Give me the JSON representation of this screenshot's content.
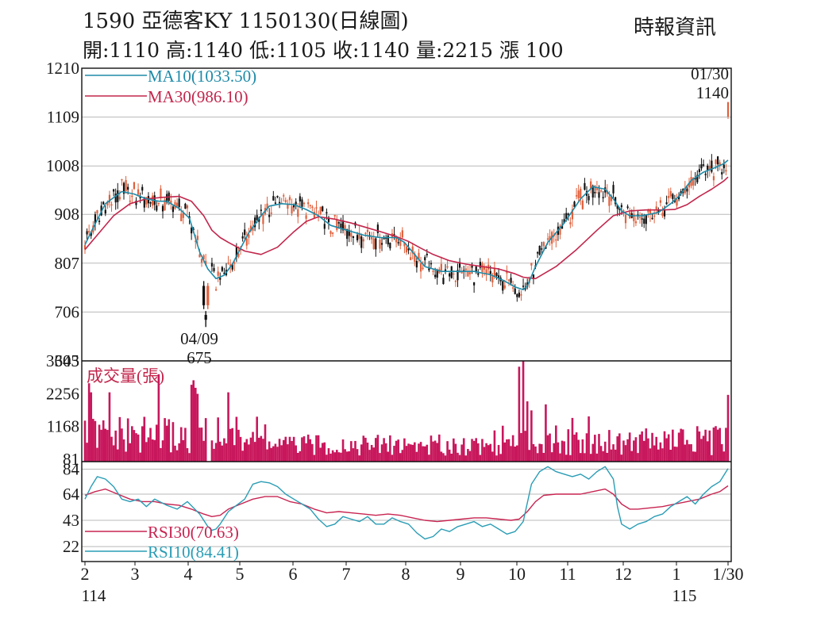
{
  "header": {
    "title": "1590  亞德客KY 1150130(日線圖)",
    "source": "時報資訊",
    "stats": "開:1110 高:1140 低:1105 收:1140 量:2215 漲 100"
  },
  "colors": {
    "up": "#e0603c",
    "down": "#111111",
    "ma10": "#1e8aa8",
    "ma30": "#c2264c",
    "volume": "#c8175c",
    "rsi10": "#2a9db5",
    "rsi30": "#c82451",
    "grid": "#b8b8b8"
  },
  "chart_data": {
    "type": "candlestick",
    "price_panel": {
      "ylim": [
        605,
        1210
      ],
      "ticks": [
        605,
        706,
        807,
        908,
        1008,
        1109,
        1210
      ],
      "legend": [
        {
          "label": "MA10(1033.50)",
          "series": "ma10"
        },
        {
          "label": "MA30(986.10)",
          "series": "ma30"
        }
      ],
      "annotations": [
        {
          "date": "01/30",
          "value": "1140",
          "label_lines": [
            "01/30",
            "1140"
          ]
        },
        {
          "date": "04/09",
          "value": "675",
          "label_lines": [
            "04/09",
            "675"
          ]
        }
      ],
      "ma10": [
        [
          0,
          845
        ],
        [
          4,
          880
        ],
        [
          10,
          930
        ],
        [
          18,
          955
        ],
        [
          24,
          950
        ],
        [
          30,
          940
        ],
        [
          36,
          935
        ],
        [
          40,
          935
        ],
        [
          46,
          920
        ],
        [
          51,
          900
        ],
        [
          56,
          830
        ],
        [
          60,
          795
        ],
        [
          64,
          775
        ],
        [
          68,
          782
        ],
        [
          72,
          805
        ],
        [
          76,
          838
        ],
        [
          80,
          870
        ],
        [
          86,
          905
        ],
        [
          90,
          925
        ],
        [
          96,
          930
        ],
        [
          102,
          928
        ],
        [
          108,
          918
        ],
        [
          114,
          905
        ],
        [
          120,
          885
        ],
        [
          128,
          875
        ],
        [
          136,
          865
        ],
        [
          144,
          860
        ],
        [
          152,
          860
        ],
        [
          156,
          850
        ],
        [
          160,
          830
        ],
        [
          166,
          800
        ],
        [
          174,
          790
        ],
        [
          182,
          790
        ],
        [
          190,
          790
        ],
        [
          198,
          783
        ],
        [
          204,
          772
        ],
        [
          210,
          758
        ],
        [
          214,
          752
        ],
        [
          216,
          760
        ],
        [
          220,
          800
        ],
        [
          226,
          850
        ],
        [
          234,
          890
        ],
        [
          242,
          940
        ],
        [
          248,
          965
        ],
        [
          254,
          960
        ],
        [
          258,
          940
        ],
        [
          262,
          915
        ],
        [
          266,
          905
        ],
        [
          272,
          905
        ],
        [
          280,
          912
        ],
        [
          286,
          930
        ],
        [
          290,
          945
        ],
        [
          296,
          978
        ],
        [
          302,
          995
        ],
        [
          308,
          1005
        ],
        [
          312,
          1013
        ],
        [
          314,
          1020
        ]
      ],
      "ma30": [
        [
          0,
          835
        ],
        [
          6,
          865
        ],
        [
          14,
          905
        ],
        [
          22,
          930
        ],
        [
          30,
          940
        ],
        [
          38,
          943
        ],
        [
          46,
          945
        ],
        [
          52,
          935
        ],
        [
          58,
          905
        ],
        [
          62,
          875
        ],
        [
          66,
          860
        ],
        [
          70,
          850
        ],
        [
          78,
          832
        ],
        [
          86,
          825
        ],
        [
          94,
          840
        ],
        [
          102,
          872
        ],
        [
          108,
          893
        ],
        [
          114,
          903
        ],
        [
          122,
          898
        ],
        [
          130,
          890
        ],
        [
          138,
          880
        ],
        [
          146,
          870
        ],
        [
          152,
          862
        ],
        [
          158,
          852
        ],
        [
          164,
          838
        ],
        [
          170,
          825
        ],
        [
          178,
          812
        ],
        [
          186,
          805
        ],
        [
          194,
          800
        ],
        [
          202,
          795
        ],
        [
          210,
          785
        ],
        [
          214,
          778
        ],
        [
          220,
          775
        ],
        [
          230,
          800
        ],
        [
          240,
          835
        ],
        [
          250,
          875
        ],
        [
          258,
          905
        ],
        [
          266,
          915
        ],
        [
          274,
          917
        ],
        [
          282,
          917
        ],
        [
          288,
          918
        ],
        [
          294,
          928
        ],
        [
          300,
          945
        ],
        [
          306,
          960
        ],
        [
          312,
          977
        ],
        [
          314,
          985
        ]
      ]
    },
    "volume_panel": {
      "title": "成交量(張)",
      "ylim": [
        0,
        3343
      ],
      "ticks": [
        81,
        1168,
        2256,
        3343
      ]
    },
    "rsi_panel": {
      "ylim": [
        10,
        90
      ],
      "ticks": [
        22,
        43,
        64,
        84
      ],
      "legend": [
        {
          "label": "RSI30(70.63)",
          "series": "rsi30"
        },
        {
          "label": "RSI10(84.41)",
          "series": "rsi10"
        }
      ],
      "rsi10": [
        [
          0,
          60
        ],
        [
          3,
          70
        ],
        [
          6,
          78
        ],
        [
          10,
          76
        ],
        [
          14,
          70
        ],
        [
          18,
          60
        ],
        [
          22,
          58
        ],
        [
          26,
          60
        ],
        [
          30,
          54
        ],
        [
          34,
          60
        ],
        [
          40,
          55
        ],
        [
          45,
          52
        ],
        [
          50,
          58
        ],
        [
          56,
          48
        ],
        [
          60,
          38
        ],
        [
          62,
          35
        ],
        [
          64,
          36
        ],
        [
          66,
          40
        ],
        [
          70,
          50
        ],
        [
          74,
          55
        ],
        [
          78,
          60
        ],
        [
          82,
          72
        ],
        [
          86,
          74
        ],
        [
          90,
          73
        ],
        [
          94,
          70
        ],
        [
          98,
          64
        ],
        [
          102,
          60
        ],
        [
          106,
          56
        ],
        [
          110,
          52
        ],
        [
          114,
          44
        ],
        [
          118,
          38
        ],
        [
          122,
          40
        ],
        [
          126,
          46
        ],
        [
          130,
          44
        ],
        [
          134,
          42
        ],
        [
          138,
          46
        ],
        [
          142,
          40
        ],
        [
          146,
          40
        ],
        [
          150,
          45
        ],
        [
          154,
          42
        ],
        [
          158,
          40
        ],
        [
          162,
          33
        ],
        [
          166,
          28
        ],
        [
          170,
          30
        ],
        [
          174,
          36
        ],
        [
          178,
          34
        ],
        [
          182,
          38
        ],
        [
          186,
          40
        ],
        [
          190,
          42
        ],
        [
          194,
          38
        ],
        [
          198,
          40
        ],
        [
          202,
          36
        ],
        [
          206,
          32
        ],
        [
          210,
          34
        ],
        [
          212,
          38
        ],
        [
          214,
          42
        ],
        [
          218,
          72
        ],
        [
          222,
          82
        ],
        [
          226,
          86
        ],
        [
          230,
          82
        ],
        [
          234,
          80
        ],
        [
          238,
          78
        ],
        [
          242,
          80
        ],
        [
          246,
          76
        ],
        [
          250,
          82
        ],
        [
          254,
          86
        ],
        [
          258,
          76
        ],
        [
          260,
          54
        ],
        [
          262,
          40
        ],
        [
          266,
          36
        ],
        [
          270,
          40
        ],
        [
          274,
          42
        ],
        [
          278,
          46
        ],
        [
          282,
          48
        ],
        [
          286,
          54
        ],
        [
          290,
          58
        ],
        [
          294,
          62
        ],
        [
          298,
          56
        ],
        [
          302,
          64
        ],
        [
          306,
          70
        ],
        [
          310,
          74
        ],
        [
          314,
          84.41
        ]
      ],
      "rsi30": [
        [
          0,
          63
        ],
        [
          5,
          66
        ],
        [
          10,
          68
        ],
        [
          16,
          64
        ],
        [
          22,
          60
        ],
        [
          28,
          58
        ],
        [
          34,
          58
        ],
        [
          40,
          56
        ],
        [
          46,
          55
        ],
        [
          52,
          52
        ],
        [
          58,
          48
        ],
        [
          62,
          46
        ],
        [
          66,
          47
        ],
        [
          70,
          52
        ],
        [
          76,
          56
        ],
        [
          82,
          60
        ],
        [
          88,
          62
        ],
        [
          94,
          62
        ],
        [
          100,
          58
        ],
        [
          106,
          56
        ],
        [
          112,
          52
        ],
        [
          118,
          49
        ],
        [
          124,
          50
        ],
        [
          130,
          49
        ],
        [
          136,
          48
        ],
        [
          142,
          47
        ],
        [
          148,
          48
        ],
        [
          154,
          47
        ],
        [
          160,
          45
        ],
        [
          166,
          43
        ],
        [
          172,
          42
        ],
        [
          178,
          43
        ],
        [
          184,
          44
        ],
        [
          190,
          45
        ],
        [
          196,
          45
        ],
        [
          202,
          44
        ],
        [
          208,
          43
        ],
        [
          212,
          44
        ],
        [
          216,
          50
        ],
        [
          220,
          58
        ],
        [
          224,
          63
        ],
        [
          230,
          64
        ],
        [
          236,
          64
        ],
        [
          242,
          64
        ],
        [
          248,
          66
        ],
        [
          254,
          68
        ],
        [
          258,
          64
        ],
        [
          262,
          56
        ],
        [
          266,
          52
        ],
        [
          270,
          52
        ],
        [
          276,
          53
        ],
        [
          282,
          54
        ],
        [
          288,
          56
        ],
        [
          294,
          58
        ],
        [
          300,
          60
        ],
        [
          306,
          64
        ],
        [
          310,
          66
        ],
        [
          314,
          70.63
        ]
      ]
    },
    "x_axis": {
      "start": "2025-02-03",
      "end": "2026-01-30",
      "labels": [
        "2",
        "3",
        "4",
        "5",
        "6",
        "7",
        "8",
        "9",
        "10",
        "11",
        "12",
        "1",
        "1/30"
      ],
      "year_labels": [
        "114",
        "115"
      ]
    }
  }
}
